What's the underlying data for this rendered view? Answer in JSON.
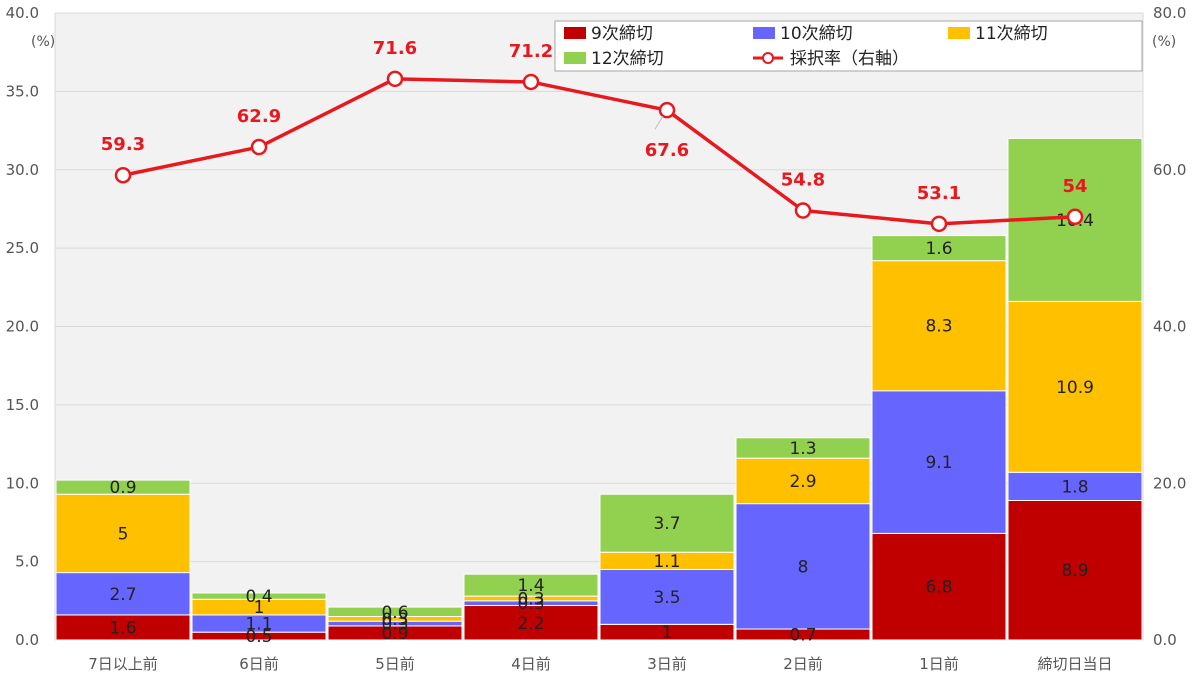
{
  "chart_data": {
    "type": "bar",
    "stacked": true,
    "categories": [
      "7日以上前",
      "6日前",
      "5日前",
      "4日前",
      "3日前",
      "2日前",
      "1日前",
      "締切日当日"
    ],
    "series": [
      {
        "name": "9次締切",
        "color": "#c00000",
        "values": [
          1.6,
          0.5,
          0.9,
          2.2,
          1.0,
          0.7,
          6.8,
          8.9
        ]
      },
      {
        "name": "10次締切",
        "color": "#6666ff",
        "values": [
          2.7,
          1.1,
          0.3,
          0.3,
          3.5,
          8.0,
          9.1,
          1.8
        ]
      },
      {
        "name": "11次締切",
        "color": "#ffc000",
        "values": [
          5.0,
          1.0,
          0.3,
          0.3,
          1.1,
          2.9,
          8.3,
          10.9
        ]
      },
      {
        "name": "12次締切",
        "color": "#92d050",
        "values": [
          0.9,
          0.4,
          0.6,
          1.4,
          3.7,
          1.3,
          1.6,
          10.4
        ]
      }
    ],
    "line_series": {
      "name": "採択率（右軸）",
      "color": "#e8191e",
      "axis": "right",
      "values": [
        59.3,
        62.9,
        71.6,
        71.2,
        67.6,
        54.8,
        53.1,
        54.0
      ]
    },
    "left_axis": {
      "unit": "(%)",
      "ylim": [
        0,
        40
      ],
      "ticks": [
        "0.0",
        "5.0",
        "10.0",
        "15.0",
        "20.0",
        "25.0",
        "30.0",
        "35.0",
        "40.0"
      ]
    },
    "right_axis": {
      "unit": "(%)",
      "ylim": [
        0,
        80
      ],
      "ticks": [
        "0.0",
        "20.0",
        "40.0",
        "60.0",
        "80.0"
      ]
    },
    "grid": true,
    "legend_position": "top-right",
    "title": "",
    "xlabel": "",
    "ylabel": ""
  }
}
